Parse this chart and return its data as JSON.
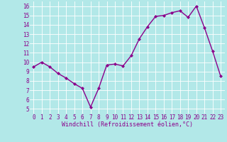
{
  "x": [
    0,
    1,
    2,
    3,
    4,
    5,
    6,
    7,
    8,
    9,
    10,
    11,
    12,
    13,
    14,
    15,
    16,
    17,
    18,
    19,
    20,
    21,
    22,
    23
  ],
  "y": [
    9.5,
    10.0,
    9.5,
    8.8,
    8.3,
    7.7,
    7.2,
    5.2,
    7.2,
    9.7,
    9.8,
    9.6,
    10.7,
    12.5,
    13.8,
    14.9,
    15.0,
    15.3,
    15.5,
    14.8,
    16.0,
    13.7,
    11.2,
    8.5
  ],
  "line_color": "#8B008B",
  "marker": "D",
  "marker_size": 2.0,
  "linewidth": 1.0,
  "bg_color": "#b2e8e8",
  "grid_color": "#ffffff",
  "xlabel": "Windchill (Refroidissement éolien,°C)",
  "xlabel_color": "#8B008B",
  "xlabel_fontsize": 6.0,
  "tick_color": "#8B008B",
  "tick_fontsize": 5.5,
  "ylim": [
    4.5,
    16.5
  ],
  "xlim": [
    -0.5,
    23.5
  ],
  "yticks": [
    5,
    6,
    7,
    8,
    9,
    10,
    11,
    12,
    13,
    14,
    15,
    16
  ],
  "xticks": [
    0,
    1,
    2,
    3,
    4,
    5,
    6,
    7,
    8,
    9,
    10,
    11,
    12,
    13,
    14,
    15,
    16,
    17,
    18,
    19,
    20,
    21,
    22,
    23
  ]
}
